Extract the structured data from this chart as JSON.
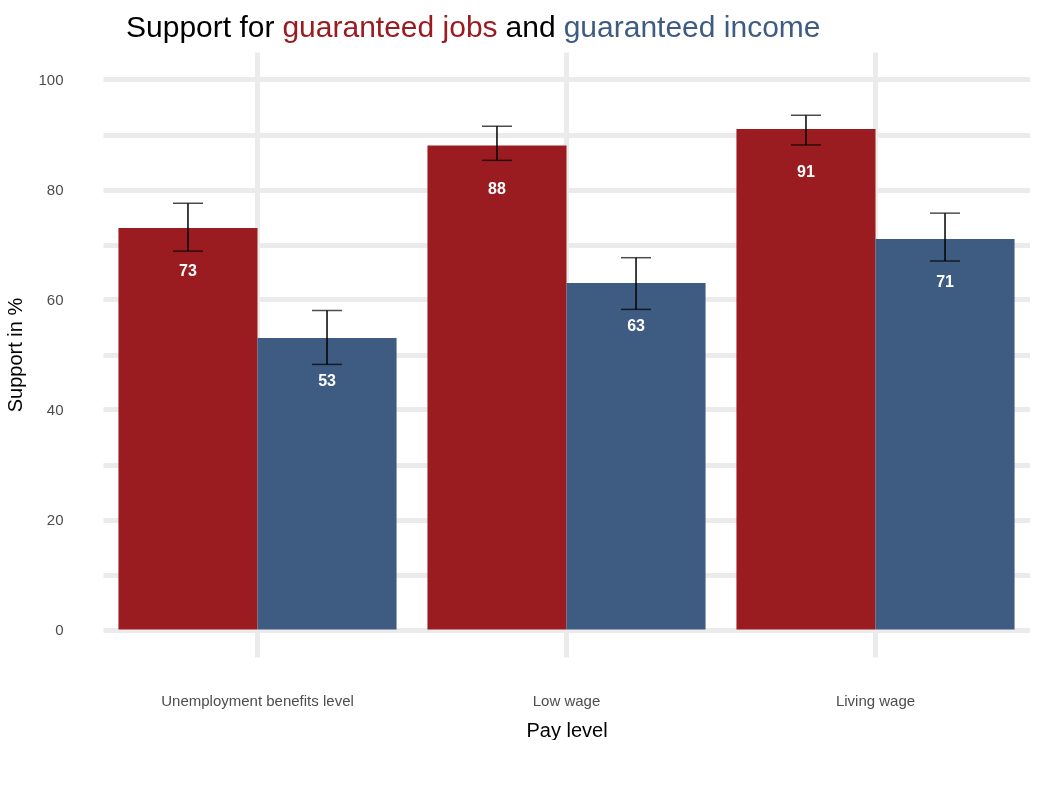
{
  "chart_data": {
    "type": "bar",
    "title": "Support for",
    "annotations": [
      "and"
    ],
    "xlabel": "Pay level",
    "ylabel": "Support in %",
    "categories": [
      "Unemployment benefits level",
      "Low wage",
      "Living wage"
    ],
    "series": [
      {
        "name": "guaranteed jobs",
        "color": "#9b1c20",
        "values": [
          73,
          88,
          91
        ],
        "errors": [
          [
            68.8,
            77.5
          ],
          [
            85.3,
            91.5
          ],
          [
            88.1,
            93.5
          ]
        ]
      },
      {
        "name": "guaranteed income",
        "color": "#3e5c82",
        "values": [
          53,
          63,
          71
        ],
        "errors": [
          [
            48.2,
            58
          ],
          [
            58.2,
            67.6
          ],
          [
            67,
            75.7
          ]
        ]
      }
    ],
    "ylim": [
      -5,
      105
    ],
    "yticks": [
      0,
      {
        "value": 10,
        "label": null
      },
      20,
      {
        "value": 30,
        "label": null
      },
      40,
      {
        "value": 50,
        "label": null
      },
      60,
      {
        "value": 70,
        "label": null
      },
      80,
      {
        "value": 90,
        "label": null
      },
      100
    ],
    "grid": true,
    "data_labels": true
  }
}
